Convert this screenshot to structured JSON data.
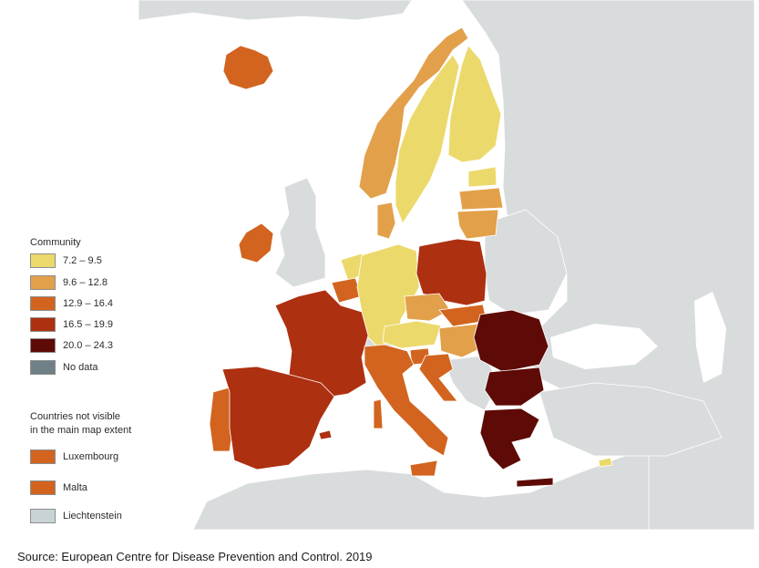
{
  "legend": {
    "title": "Community",
    "classes": [
      {
        "label": "7.2 – 9.5",
        "color": "#ecd96c"
      },
      {
        "label": "9.6 – 12.8",
        "color": "#e2a04a"
      },
      {
        "label": "12.9 – 16.4",
        "color": "#d2641f"
      },
      {
        "label": "16.5 – 19.9",
        "color": "#ad3010"
      },
      {
        "label": "20.0 – 24.3",
        "color": "#5e0a06"
      },
      {
        "label": "No data",
        "color": "#6f8087"
      }
    ]
  },
  "not_visible": {
    "title_line1": "Countries not visible",
    "title_line2": "in the main map extent",
    "items": [
      {
        "label": "Luxembourg",
        "color": "#d2641f"
      },
      {
        "label": "Malta",
        "color": "#d2641f"
      },
      {
        "label": "Liechtenstein",
        "color": "#c9d3d6"
      }
    ]
  },
  "map": {
    "sea_color": "#ffffff",
    "other_land_color": "#d9dcdd",
    "not_included_color": "#c9d3d6"
  },
  "source": "Source: European Centre for Disease Prevention and Control. 2019"
}
